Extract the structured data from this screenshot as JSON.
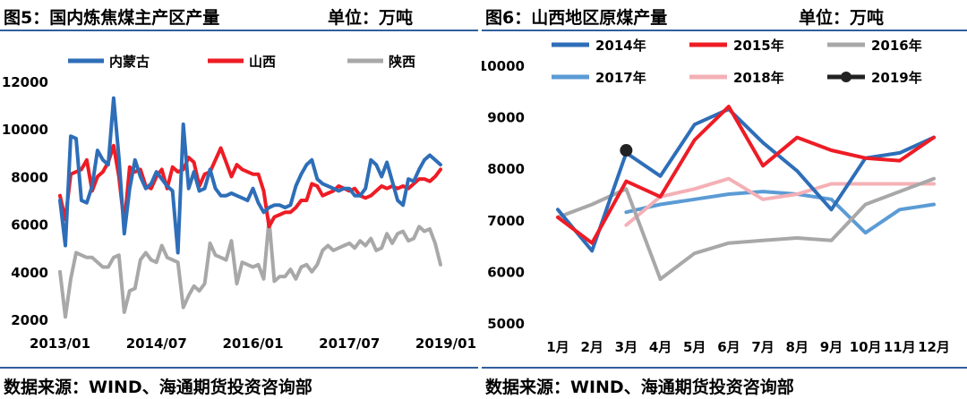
{
  "left": {
    "title": "图5：国内炼焦煤主产区产量",
    "unit": "单位：万吨",
    "source": "数据来源：WIND、海通期货投资咨询部"
  },
  "right": {
    "title": "图6：山西地区原煤产量",
    "unit": "单位：万吨",
    "source": "数据来源：WIND、海通期货投资咨询部"
  },
  "colors": {
    "rule": "#2f5f9e",
    "blue": "#2e6eb8",
    "red": "#ee1c25",
    "gray": "#a8a8a8",
    "lightblue": "#5b9bd5",
    "pink": "#f4b0b6",
    "black": "#222222"
  },
  "chart_data": [
    {
      "type": "line",
      "title": "",
      "ylim": [
        2000,
        12000
      ],
      "yticks": [
        "12000",
        "10000",
        "8000",
        "6000",
        "4000",
        "2000"
      ],
      "x_tick_labels": [
        "2013/01",
        "2014/07",
        "2016/01",
        "2017/07",
        "2019/01"
      ],
      "x_start": "2013/01",
      "x_end": "2019/03",
      "legend_position": "top",
      "series": [
        {
          "name": "内蒙古",
          "color": "#2e6eb8",
          "values": [
            7000,
            5100,
            9700,
            9600,
            7000,
            6900,
            7600,
            9100,
            8700,
            8500,
            11300,
            8800,
            5600,
            7500,
            8700,
            8000,
            7500,
            7700,
            8200,
            7900,
            7600,
            7400,
            4800,
            10200,
            7500,
            8200,
            7400,
            7500,
            8300,
            7500,
            7200,
            7200,
            7300,
            7200,
            7100,
            7000,
            7500,
            6900,
            6500,
            6700,
            6800,
            6800,
            6700,
            6800,
            7600,
            8100,
            8500,
            8700,
            7900,
            7700,
            7600,
            7500,
            7400,
            7500,
            7500,
            7200,
            7200,
            7500,
            8700,
            8500,
            8000,
            8600,
            7800,
            7000,
            6800,
            7900,
            7800,
            8300,
            8700,
            8900,
            8700,
            8500
          ]
        },
        {
          "name": "山西",
          "color": "#ee1c25",
          "values": [
            7200,
            6200,
            8100,
            8200,
            8300,
            8700,
            7400,
            8000,
            8200,
            8600,
            9300,
            8000,
            6000,
            8400,
            8200,
            8300,
            7600,
            7500,
            8000,
            8300,
            7500,
            8400,
            8200,
            8300,
            8800,
            8600,
            7600,
            8100,
            8200,
            8700,
            9200,
            8600,
            8000,
            8500,
            8300,
            8200,
            8100,
            8100,
            7400,
            5900,
            6300,
            6400,
            6500,
            6500,
            6700,
            7000,
            7000,
            7700,
            7600,
            7200,
            7300,
            7400,
            7600,
            7500,
            7400,
            7500,
            7200,
            7100,
            7200,
            7400,
            7600,
            7500,
            7600,
            7500,
            7600,
            7500,
            7700,
            7900,
            7900,
            7800,
            8000,
            8300
          ]
        },
        {
          "name": "陕西",
          "color": "#a8a8a8",
          "values": [
            4000,
            2100,
            3700,
            4800,
            4700,
            4600,
            4600,
            4400,
            4200,
            4200,
            4600,
            4700,
            2300,
            3200,
            3300,
            4500,
            4800,
            4500,
            4400,
            5100,
            4600,
            4500,
            4400,
            2500,
            3000,
            3400,
            3200,
            3500,
            5200,
            4700,
            4600,
            4500,
            5300,
            3500,
            4400,
            4300,
            4200,
            4300,
            3700,
            6200,
            3600,
            3800,
            3800,
            4100,
            3700,
            4200,
            4300,
            4000,
            4300,
            4900,
            5100,
            4900,
            5000,
            5100,
            5200,
            5000,
            5300,
            5100,
            5400,
            4900,
            5000,
            5600,
            5200,
            5600,
            5700,
            5300,
            5400,
            5900,
            5700,
            5800,
            5200,
            4300
          ]
        }
      ]
    },
    {
      "type": "line",
      "title": "",
      "ylim": [
        5000,
        10000
      ],
      "yticks": [
        "10000",
        "9000",
        "8000",
        "7000",
        "6000",
        "5000"
      ],
      "categories": [
        "1月",
        "2月",
        "3月",
        "4月",
        "5月",
        "6月",
        "7月",
        "8月",
        "9月",
        "10月",
        "11月",
        "12月"
      ],
      "legend_position": "top",
      "series": [
        {
          "name": "2014年",
          "color": "#2e6eb8",
          "values": [
            7200,
            6400,
            8300,
            7850,
            8850,
            9150,
            8500,
            7950,
            7200,
            8200,
            8300,
            8600
          ]
        },
        {
          "name": "2015年",
          "color": "#ee1c25",
          "values": [
            7050,
            6550,
            7750,
            7450,
            8550,
            9200,
            8050,
            8600,
            8350,
            8200,
            8150,
            8600
          ]
        },
        {
          "name": "2016年",
          "color": "#a8a8a8",
          "values": [
            7050,
            7300,
            7600,
            5850,
            6350,
            6550,
            6600,
            6650,
            6600,
            7300,
            7550,
            7800
          ]
        },
        {
          "name": "2017年",
          "color": "#5b9bd5",
          "values": [
            null,
            null,
            7150,
            7300,
            7400,
            7500,
            7550,
            7500,
            7400,
            6750,
            7200,
            7300
          ]
        },
        {
          "name": "2018年",
          "color": "#f4b0b6",
          "values": [
            null,
            null,
            6900,
            7450,
            7600,
            7800,
            7400,
            7500,
            7700,
            7700,
            7700,
            7700
          ]
        },
        {
          "name": "2019年",
          "color": "#222222",
          "values": [
            null,
            null,
            8350,
            null,
            null,
            null,
            null,
            null,
            null,
            null,
            null,
            null
          ]
        }
      ]
    }
  ]
}
